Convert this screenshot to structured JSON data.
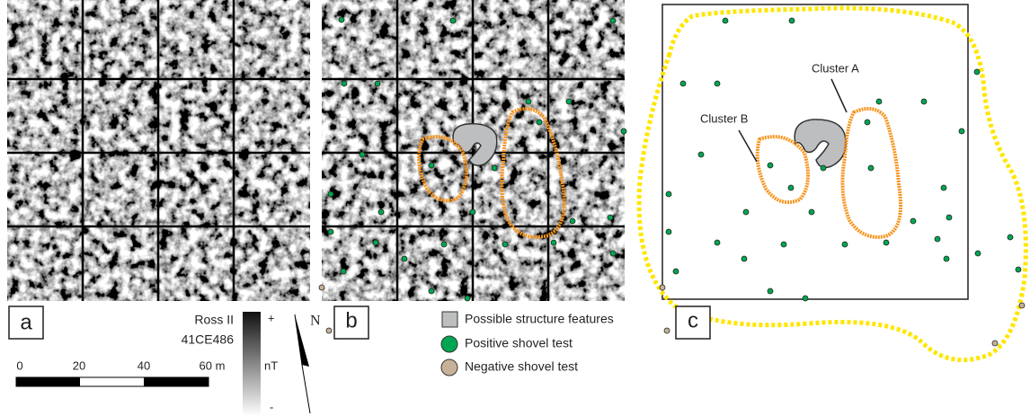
{
  "panels": {
    "a": {
      "label": "a",
      "site_name": "Ross II",
      "site_id": "41CE486",
      "scale_bar": {
        "labels": [
          "0",
          "20",
          "40",
          "60 m"
        ]
      },
      "gradient": {
        "max": "+",
        "unit": "nT",
        "min": "-"
      },
      "north": "N"
    },
    "b": {
      "label": "b",
      "legend": [
        "Possible structure features",
        "Positive shovel test",
        "Negative shovel test"
      ]
    },
    "c": {
      "label": "c",
      "annotations": [
        "Cluster A",
        "Cluster B"
      ]
    }
  }
}
